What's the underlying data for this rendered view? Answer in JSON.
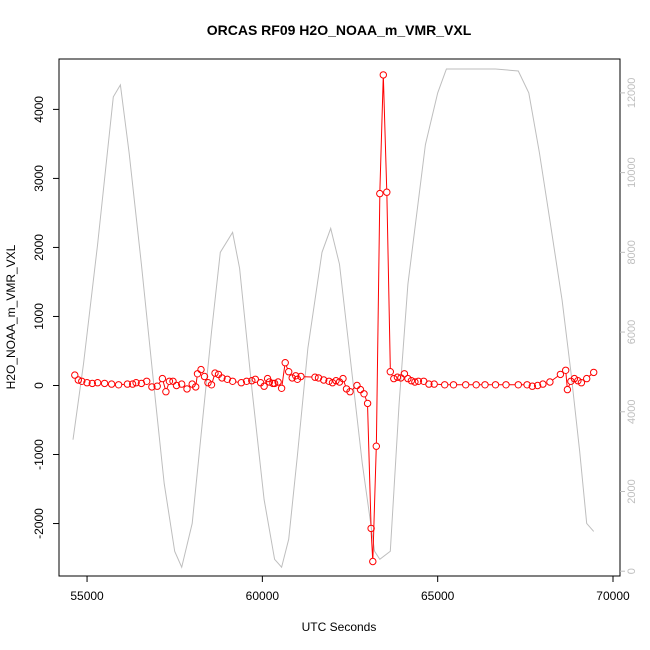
{
  "chart_data": {
    "type": "line",
    "title": "ORCAS RF09 H2O_NOAA_m_VMR_VXL",
    "xlabel": "UTC Seconds",
    "ylabel": "H2O_NOAA_m_VMR_VXL",
    "xlim": [
      54200,
      70200
    ],
    "ylim": [
      -2760,
      4730
    ],
    "y2lim": [
      -120,
      12850
    ],
    "x_ticks": [
      55000,
      60000,
      65000,
      70000
    ],
    "y_ticks": [
      -2000,
      -1000,
      0,
      1000,
      2000,
      3000,
      4000
    ],
    "y2_ticks": [
      0,
      2000,
      4000,
      6000,
      8000,
      10000,
      12000
    ],
    "grid": false,
    "series": [
      {
        "role": "primary",
        "color": "#ff0000",
        "marker": "open-circle",
        "x": [
          54650,
          54750,
          54850,
          55000,
          55150,
          55300,
          55500,
          55700,
          55900,
          56150,
          56300,
          56400,
          56550,
          56700,
          56850,
          57000,
          57150,
          57250,
          57350,
          57450,
          57550,
          57700,
          57850,
          58000,
          58100,
          58150,
          58250,
          58350,
          58450,
          58550,
          58650,
          58750,
          58850,
          59000,
          59150,
          59400,
          59550,
          59700,
          59800,
          59950,
          60050,
          60150,
          60200,
          60300,
          60350,
          60450,
          60550,
          60650,
          60750,
          60850,
          60950,
          61000,
          61100,
          61500,
          61600,
          61750,
          61900,
          62000,
          62100,
          62200,
          62300,
          62400,
          62500,
          62700,
          62800,
          62900,
          63000,
          63100,
          63150,
          63250,
          63350,
          63450,
          63550,
          63650,
          63750,
          63850,
          63950,
          64050,
          64150,
          64250,
          64350,
          64450,
          64600,
          64750,
          64900,
          65200,
          65450,
          65800,
          66100,
          66350,
          66650,
          66950,
          67300,
          67550,
          67700,
          67850,
          68000,
          68200,
          68500,
          68650,
          68700,
          68800,
          68900,
          69000,
          69100,
          69250,
          69450
        ],
        "y": [
          150,
          80,
          60,
          40,
          30,
          40,
          30,
          20,
          10,
          20,
          20,
          40,
          30,
          60,
          -20,
          -10,
          100,
          -90,
          60,
          60,
          0,
          20,
          -50,
          20,
          -20,
          170,
          230,
          130,
          40,
          10,
          180,
          160,
          110,
          90,
          60,
          40,
          60,
          70,
          90,
          40,
          -10,
          100,
          50,
          30,
          30,
          50,
          -40,
          330,
          200,
          110,
          140,
          90,
          130,
          120,
          110,
          80,
          60,
          40,
          70,
          50,
          100,
          -50,
          -90,
          0,
          -60,
          -120,
          -260,
          -2070,
          -2550,
          -880,
          2780,
          4500,
          2800,
          200,
          100,
          120,
          110,
          170,
          100,
          70,
          50,
          60,
          60,
          20,
          20,
          10,
          10,
          10,
          10,
          10,
          10,
          10,
          10,
          10,
          -10,
          0,
          20,
          50,
          160,
          220,
          -60,
          60,
          100,
          70,
          40,
          100,
          190
        ]
      },
      {
        "role": "secondary",
        "color": "#bebebe",
        "marker": "none",
        "x": [
          54600,
          54900,
          55300,
          55750,
          55950,
          56200,
          56550,
          56900,
          57200,
          57500,
          57700,
          58000,
          58250,
          58550,
          58800,
          59150,
          59350,
          59700,
          60050,
          60350,
          60550,
          60750,
          61000,
          61300,
          61700,
          61950,
          62200,
          62500,
          62850,
          63200,
          63350,
          63650,
          63900,
          64150,
          64650,
          65000,
          65250,
          65850,
          66650,
          67300,
          67600,
          67900,
          68200,
          68550,
          68800,
          69050,
          69250,
          69450
        ],
        "y": [
          3300,
          5200,
          8200,
          11900,
          12200,
          10500,
          7700,
          4700,
          2200,
          500,
          100,
          1200,
          3400,
          6000,
          8000,
          8500,
          7600,
          4600,
          1800,
          300,
          100,
          800,
          2900,
          5600,
          8000,
          8600,
          7700,
          5400,
          2700,
          500,
          300,
          500,
          4200,
          7200,
          10700,
          12000,
          12600,
          12600,
          12600,
          12550,
          12000,
          10500,
          8800,
          6800,
          5000,
          3000,
          1200,
          1000
        ]
      }
    ]
  }
}
